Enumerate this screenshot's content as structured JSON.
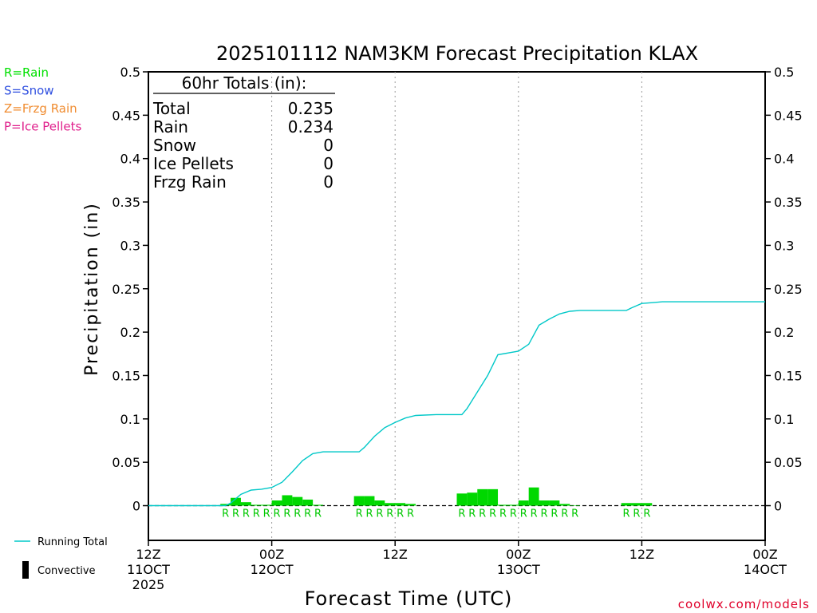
{
  "chart_data": {
    "type": "bar+line",
    "title": "2025101112 NAM3KM Forecast Precipitation KLAX",
    "xlabel": "Forecast Time (UTC)",
    "ylabel": "Precipitation (in)",
    "ylim": [
      -0.04,
      0.5
    ],
    "y_ticks": [
      0,
      0.05,
      0.1,
      0.15,
      0.2,
      0.25,
      0.3,
      0.35,
      0.4,
      0.45,
      0.5
    ],
    "y_tick_labels": [
      "0",
      "0.05",
      "0.1",
      "0.15",
      "0.2",
      "0.25",
      "0.3",
      "0.35",
      "0.4",
      "0.45",
      "0.5"
    ],
    "xlim_hours": [
      0,
      60
    ],
    "x_ticks": [
      {
        "hour": 0,
        "lines": [
          "12Z",
          "11OCT",
          "2025"
        ]
      },
      {
        "hour": 12,
        "lines": [
          "00Z",
          "12OCT"
        ]
      },
      {
        "hour": 24,
        "lines": [
          "12Z"
        ]
      },
      {
        "hour": 36,
        "lines": [
          "00Z",
          "13OCT"
        ]
      },
      {
        "hour": 48,
        "lines": [
          "12Z"
        ]
      },
      {
        "hour": 60,
        "lines": [
          "00Z",
          "14OCT"
        ]
      }
    ],
    "ptype_legend": [
      {
        "label": "R=Rain",
        "color": "#00e000"
      },
      {
        "label": "S=Snow",
        "color": "#3050e0"
      },
      {
        "label": "Z=Frzg Rain",
        "color": "#f08c30"
      },
      {
        "label": "P=Ice Pellets",
        "color": "#e0208c"
      }
    ],
    "totals_header": "60hr Totals (in):",
    "totals": [
      {
        "label": "Total",
        "value": "0.235"
      },
      {
        "label": "Rain",
        "value": "0.234"
      },
      {
        "label": "Snow",
        "value": "0"
      },
      {
        "label": "Ice Pellets",
        "value": "0"
      },
      {
        "label": "Frzg Rain",
        "value": "0"
      }
    ],
    "bar_series": {
      "name": "Hourly precipitation",
      "color": "#00d800",
      "hours": [
        8,
        9,
        10,
        11,
        12,
        13,
        14,
        15,
        16,
        17,
        21,
        22,
        23,
        24,
        25,
        26,
        31,
        32,
        33,
        34,
        35,
        36,
        37,
        38,
        39,
        40,
        41,
        42,
        47,
        48,
        49
      ],
      "values": [
        0.002,
        0.009,
        0.004,
        0.001,
        0.001,
        0.006,
        0.012,
        0.01,
        0.007,
        0.001,
        0.011,
        0.011,
        0.006,
        0.003,
        0.003,
        0.002,
        0.014,
        0.015,
        0.019,
        0.019,
        0.001,
        0.001,
        0.006,
        0.021,
        0.006,
        0.006,
        0.002,
        0.0005,
        0.003,
        0.003,
        0.003
      ]
    },
    "rain_marks": {
      "symbol": "R",
      "color": "#00c800",
      "hours": [
        8,
        9,
        10,
        11,
        12,
        13,
        14,
        15,
        16,
        17,
        21,
        22,
        23,
        24,
        25,
        26,
        31,
        32,
        33,
        34,
        35,
        36,
        37,
        38,
        39,
        40,
        41,
        42,
        47,
        48,
        49
      ]
    },
    "running_total": {
      "name": "Running Total",
      "color": "#00c8c8",
      "points": [
        [
          0,
          0
        ],
        [
          7.5,
          0
        ],
        [
          8,
          0.003
        ],
        [
          9,
          0.013
        ],
        [
          10,
          0.018
        ],
        [
          11,
          0.019
        ],
        [
          12,
          0.021
        ],
        [
          13,
          0.027
        ],
        [
          14,
          0.039
        ],
        [
          15,
          0.052
        ],
        [
          16,
          0.06
        ],
        [
          17,
          0.062
        ],
        [
          20.5,
          0.062
        ],
        [
          21,
          0.067
        ],
        [
          22,
          0.08
        ],
        [
          23,
          0.09
        ],
        [
          24,
          0.096
        ],
        [
          25,
          0.101
        ],
        [
          26,
          0.104
        ],
        [
          28,
          0.105
        ],
        [
          30.5,
          0.105
        ],
        [
          31,
          0.112
        ],
        [
          32,
          0.131
        ],
        [
          33,
          0.15
        ],
        [
          34,
          0.174
        ],
        [
          35,
          0.176
        ],
        [
          36,
          0.178
        ],
        [
          37,
          0.186
        ],
        [
          38,
          0.208
        ],
        [
          39,
          0.215
        ],
        [
          40,
          0.221
        ],
        [
          41,
          0.224
        ],
        [
          42,
          0.225
        ],
        [
          46.5,
          0.225
        ],
        [
          47,
          0.228
        ],
        [
          48,
          0.233
        ],
        [
          49,
          0.234
        ],
        [
          50,
          0.235
        ],
        [
          60,
          0.235
        ]
      ]
    },
    "bottom_legend": [
      {
        "label": "Running Total",
        "kind": "line",
        "color": "#00c8c8"
      },
      {
        "label": "Convective",
        "kind": "bar",
        "color": "#000000"
      }
    ],
    "credit": "coolwx.com/models"
  }
}
